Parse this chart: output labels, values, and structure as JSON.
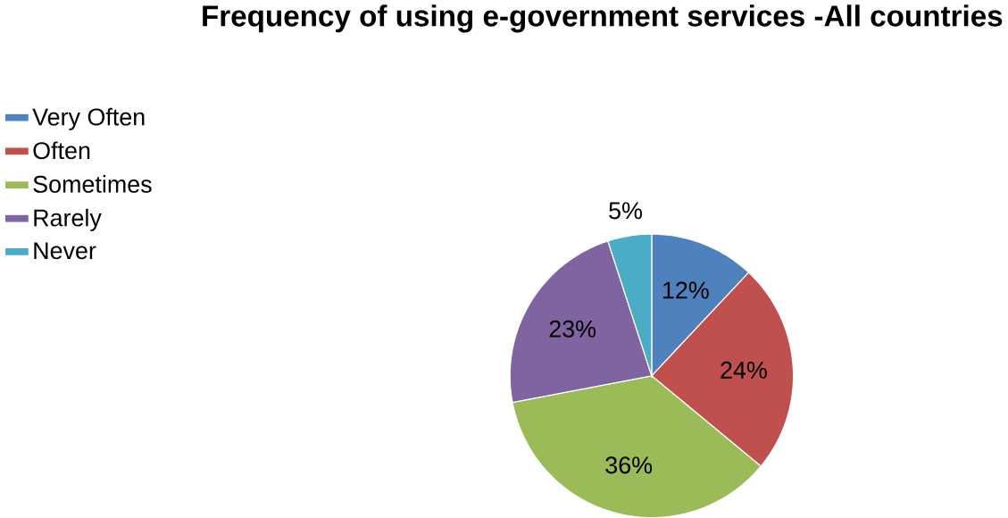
{
  "chart_data": {
    "type": "pie",
    "title": "Frequency of using e-government services -All countries",
    "categories": [
      "Very Often",
      "Often",
      "Sometimes",
      "Rarely",
      "Never"
    ],
    "values": [
      12,
      24,
      36,
      23,
      5
    ],
    "colors": [
      "#4f81bd",
      "#c0504d",
      "#9bbb59",
      "#8064a2",
      "#4bacc6"
    ],
    "value_labels": [
      "12%",
      "24%",
      "36%",
      "23%",
      "5%"
    ],
    "legend": "left"
  }
}
